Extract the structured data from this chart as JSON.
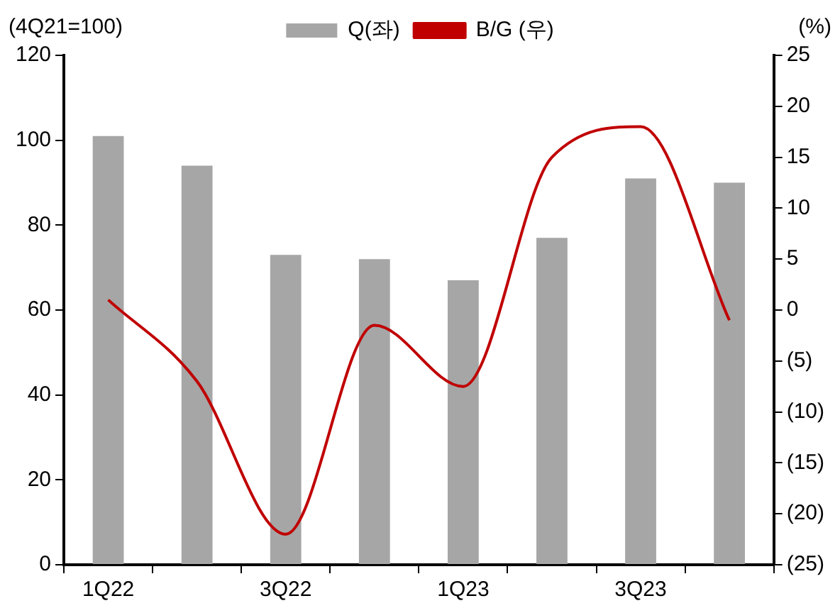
{
  "chart_data": {
    "type": "bar",
    "categories": [
      "1Q22",
      null,
      "3Q22",
      null,
      "1Q23",
      null,
      "3Q23",
      null
    ],
    "series": [
      {
        "name": "Q(좌)",
        "color": "#a6a6a6",
        "values": [
          101,
          94,
          73,
          72,
          67,
          77,
          91,
          90
        ]
      },
      {
        "name": "B/G (우)",
        "type": "line",
        "axis": "y2",
        "color": "#c00000",
        "values": [
          1,
          -7,
          -22,
          -1.5,
          -7.5,
          15,
          18,
          -1
        ]
      }
    ],
    "ylabel": "(4Q21=100)",
    "y2label": "(%)",
    "ylim": [
      0,
      120
    ],
    "yticks": [
      0,
      20,
      40,
      60,
      80,
      100,
      120
    ],
    "y2lim": [
      -25,
      25
    ],
    "y2ticks": [
      {
        "value": -25,
        "label": "(25)"
      },
      {
        "value": -20,
        "label": "(20)"
      },
      {
        "value": -15,
        "label": "(15)"
      },
      {
        "value": -10,
        "label": "(10)"
      },
      {
        "value": -5,
        "label": "(5)"
      },
      0,
      5,
      10,
      15,
      20,
      25
    ],
    "grid": false,
    "legend": "top",
    "marker": "none"
  }
}
